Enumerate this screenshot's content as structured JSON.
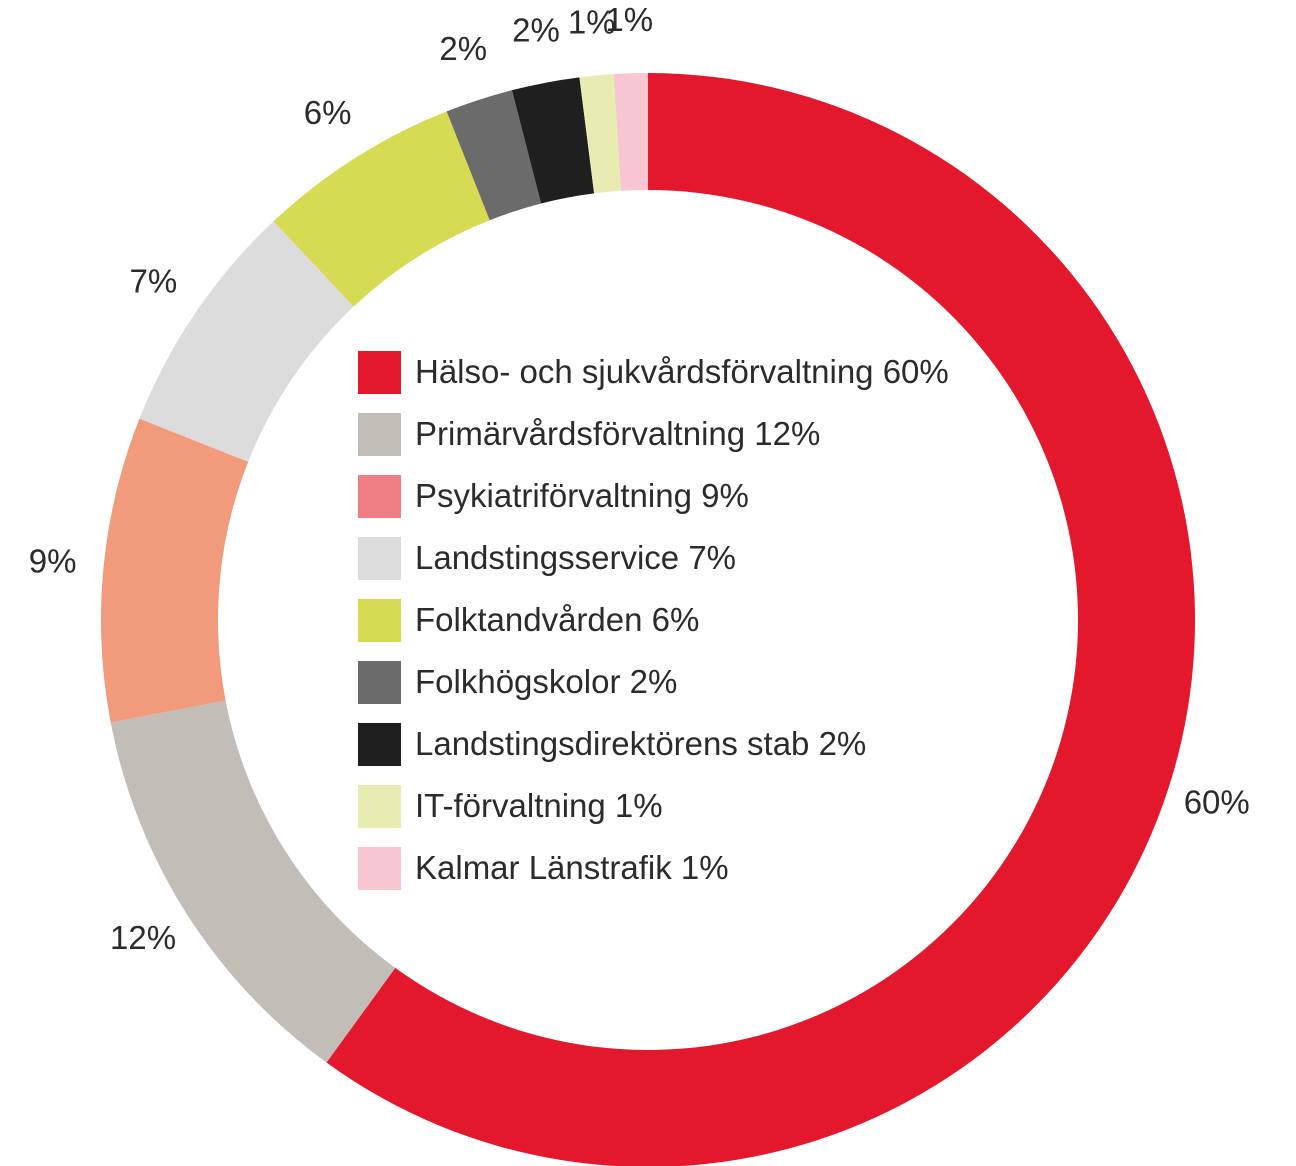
{
  "chart_data": {
    "type": "pie",
    "variant": "donut",
    "title": "",
    "categories": [
      "Hälso- och sjukvårdsförvaltning",
      "Primärvårdsförvaltning",
      "Psykiatriförvaltning",
      "Landstingsservice",
      "Folktandvården",
      "Folkhögskolor",
      "Landstingsdirektörens stab",
      "IT-förvaltning",
      "Kalmar Länstrafik"
    ],
    "values": [
      60,
      12,
      9,
      7,
      6,
      2,
      2,
      1,
      1
    ],
    "value_labels": [
      "60%",
      "12%",
      "9%",
      "7%",
      "6%",
      "2%",
      "2%",
      "1%",
      "1%"
    ],
    "colors": [
      "#e3182d",
      "#c3bdb7",
      "#f29a7c",
      "#dcdcdc",
      "#d5db52",
      "#6b6b6b",
      "#1f1f1f",
      "#e9ecb2",
      "#f7c6d0"
    ],
    "legend": {
      "placement": "center",
      "entries": [
        {
          "label": "Hälso- och sjukvårdsförvaltning 60%",
          "color": "#e3182d"
        },
        {
          "label": "Primärvårdsförvaltning 12%",
          "color": "#c3bdb7"
        },
        {
          "label": "Psykiatriförvaltning 9%",
          "color": "#ee7e83"
        },
        {
          "label": "Landstingsservice 7%",
          "color": "#dcdcdc"
        },
        {
          "label": "Folktandvården 6%",
          "color": "#d5db52"
        },
        {
          "label": "Folkhögskolor 2%",
          "color": "#6b6b6b"
        },
        {
          "label": "Landstingsdirektörens stab 2%",
          "color": "#1f1f1f"
        },
        {
          "label": "IT-förvaltning 1%",
          "color": "#e9ecb2"
        },
        {
          "label": "Kalmar Länstrafik 1%",
          "color": "#f7c6d0"
        }
      ]
    },
    "start": "top",
    "direction": "clockwise"
  }
}
